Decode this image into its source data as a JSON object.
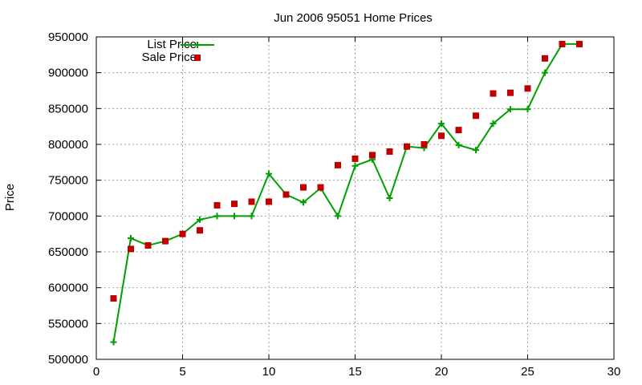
{
  "chart_data": {
    "type": "line",
    "title": "Jun 2006 95051 Home Prices",
    "xlabel": "",
    "ylabel": "Price",
    "xlim": [
      0,
      30
    ],
    "ylim": [
      500000,
      950000
    ],
    "xticks": [
      0,
      5,
      10,
      15,
      20,
      25,
      30
    ],
    "yticks": [
      500000,
      550000,
      600000,
      650000,
      700000,
      750000,
      800000,
      850000,
      900000,
      950000
    ],
    "grid": true,
    "legend_position": "top-left",
    "series": [
      {
        "name": "List Price",
        "style": "line-with-plus",
        "color": "#00a000",
        "x": [
          1,
          2,
          3,
          4,
          5,
          6,
          7,
          8,
          9,
          10,
          11,
          12,
          13,
          14,
          15,
          16,
          17,
          18,
          19,
          20,
          21,
          22,
          23,
          24,
          25,
          26,
          27,
          28
        ],
        "values": [
          524000,
          669000,
          659000,
          665000,
          675000,
          695000,
          700000,
          700000,
          700000,
          759000,
          730000,
          719000,
          739000,
          700000,
          770000,
          779000,
          725000,
          797000,
          795000,
          829000,
          799000,
          792000,
          829000,
          849000,
          849000,
          900000,
          940000,
          940000
        ]
      },
      {
        "name": "Sale Price",
        "style": "square-points",
        "color": "#c00000",
        "x": [
          1,
          2,
          3,
          4,
          5,
          6,
          7,
          8,
          9,
          10,
          11,
          12,
          13,
          14,
          15,
          16,
          17,
          18,
          19,
          20,
          21,
          22,
          23,
          24,
          25,
          26,
          27,
          28
        ],
        "values": [
          585000,
          654000,
          659000,
          665000,
          675000,
          680000,
          715000,
          717000,
          720000,
          720000,
          730000,
          740000,
          740000,
          771000,
          780000,
          785000,
          790000,
          797000,
          800000,
          812000,
          820000,
          840000,
          871000,
          872000,
          878000,
          920000,
          940000,
          940000
        ]
      }
    ]
  }
}
